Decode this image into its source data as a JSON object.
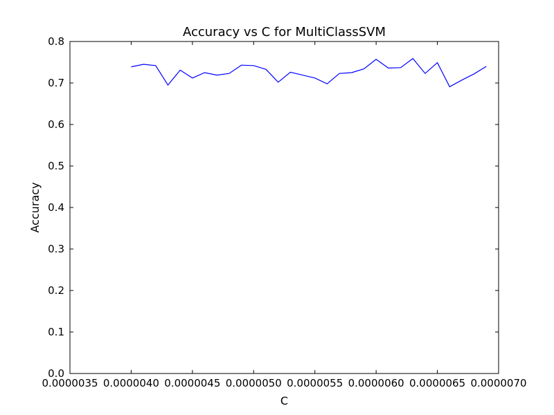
{
  "chart_data": {
    "type": "line",
    "title": "Accuracy vs C for MultiClassSVM",
    "xlabel": "C",
    "ylabel": "Accuracy",
    "xlim": [
      3.5e-06,
      7e-06
    ],
    "ylim": [
      0.0,
      0.8
    ],
    "x_ticks": [
      3.5e-06,
      4e-06,
      4.5e-06,
      5e-06,
      5.5e-06,
      6e-06,
      6.5e-06,
      7e-06
    ],
    "x_tick_labels": [
      "0.0000035",
      "0.0000040",
      "0.0000045",
      "0.0000050",
      "0.0000055",
      "0.0000060",
      "0.0000065",
      "0.0000070"
    ],
    "y_ticks": [
      0.0,
      0.1,
      0.2,
      0.3,
      0.4,
      0.5,
      0.6,
      0.7,
      0.8
    ],
    "y_tick_labels": [
      "0.0",
      "0.1",
      "0.2",
      "0.3",
      "0.4",
      "0.5",
      "0.6",
      "0.7",
      "0.8"
    ],
    "grid": false,
    "line_color": "#0000ff",
    "series": [
      {
        "x": [
          4e-06,
          4.1e-06,
          4.2e-06,
          4.3e-06,
          4.4e-06,
          4.5e-06,
          4.6e-06,
          4.7e-06,
          4.8e-06,
          4.9e-06,
          5e-06,
          5.1e-06,
          5.2e-06,
          5.3e-06,
          5.4e-06,
          5.5e-06,
          5.6e-06,
          5.7e-06,
          5.8e-06,
          5.9e-06,
          6e-06,
          6.1e-06,
          6.2e-06,
          6.3e-06,
          6.4e-06,
          6.5e-06,
          6.6e-06,
          6.7e-06,
          6.8e-06,
          6.9e-06
        ],
        "values": [
          0.739,
          0.745,
          0.742,
          0.695,
          0.731,
          0.712,
          0.725,
          0.719,
          0.723,
          0.743,
          0.742,
          0.733,
          0.702,
          0.726,
          0.719,
          0.712,
          0.698,
          0.723,
          0.725,
          0.734,
          0.757,
          0.736,
          0.737,
          0.759,
          0.723,
          0.749,
          0.691,
          0.707,
          0.722,
          0.74
        ]
      }
    ]
  }
}
